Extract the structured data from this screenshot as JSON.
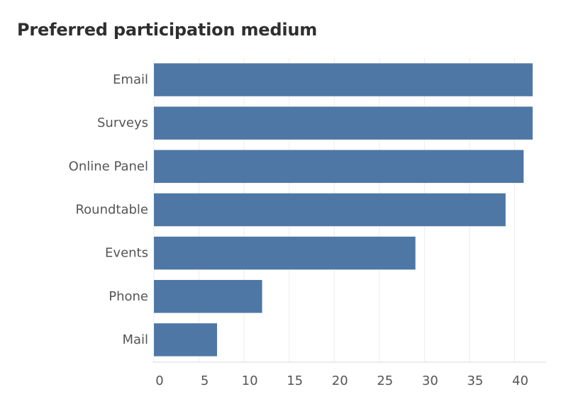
{
  "chart_data": {
    "type": "bar",
    "orientation": "horizontal",
    "title": "Preferred participation medium",
    "xlabel": "",
    "ylabel": "",
    "categories": [
      "Email",
      "Surveys",
      "Online Panel",
      "Roundtable",
      "Events",
      "Phone",
      "Mail"
    ],
    "values": [
      42,
      42,
      41,
      39,
      29,
      12,
      7
    ],
    "xlim": [
      0,
      43.5
    ],
    "xticks": [
      0,
      5,
      10,
      15,
      20,
      25,
      30,
      35,
      40
    ],
    "grid": true,
    "legend": "none",
    "bar_color": "#4e77a5",
    "grid_color": "#ececec",
    "axis_color": "#d8d8d8",
    "text_color": "#555555"
  }
}
